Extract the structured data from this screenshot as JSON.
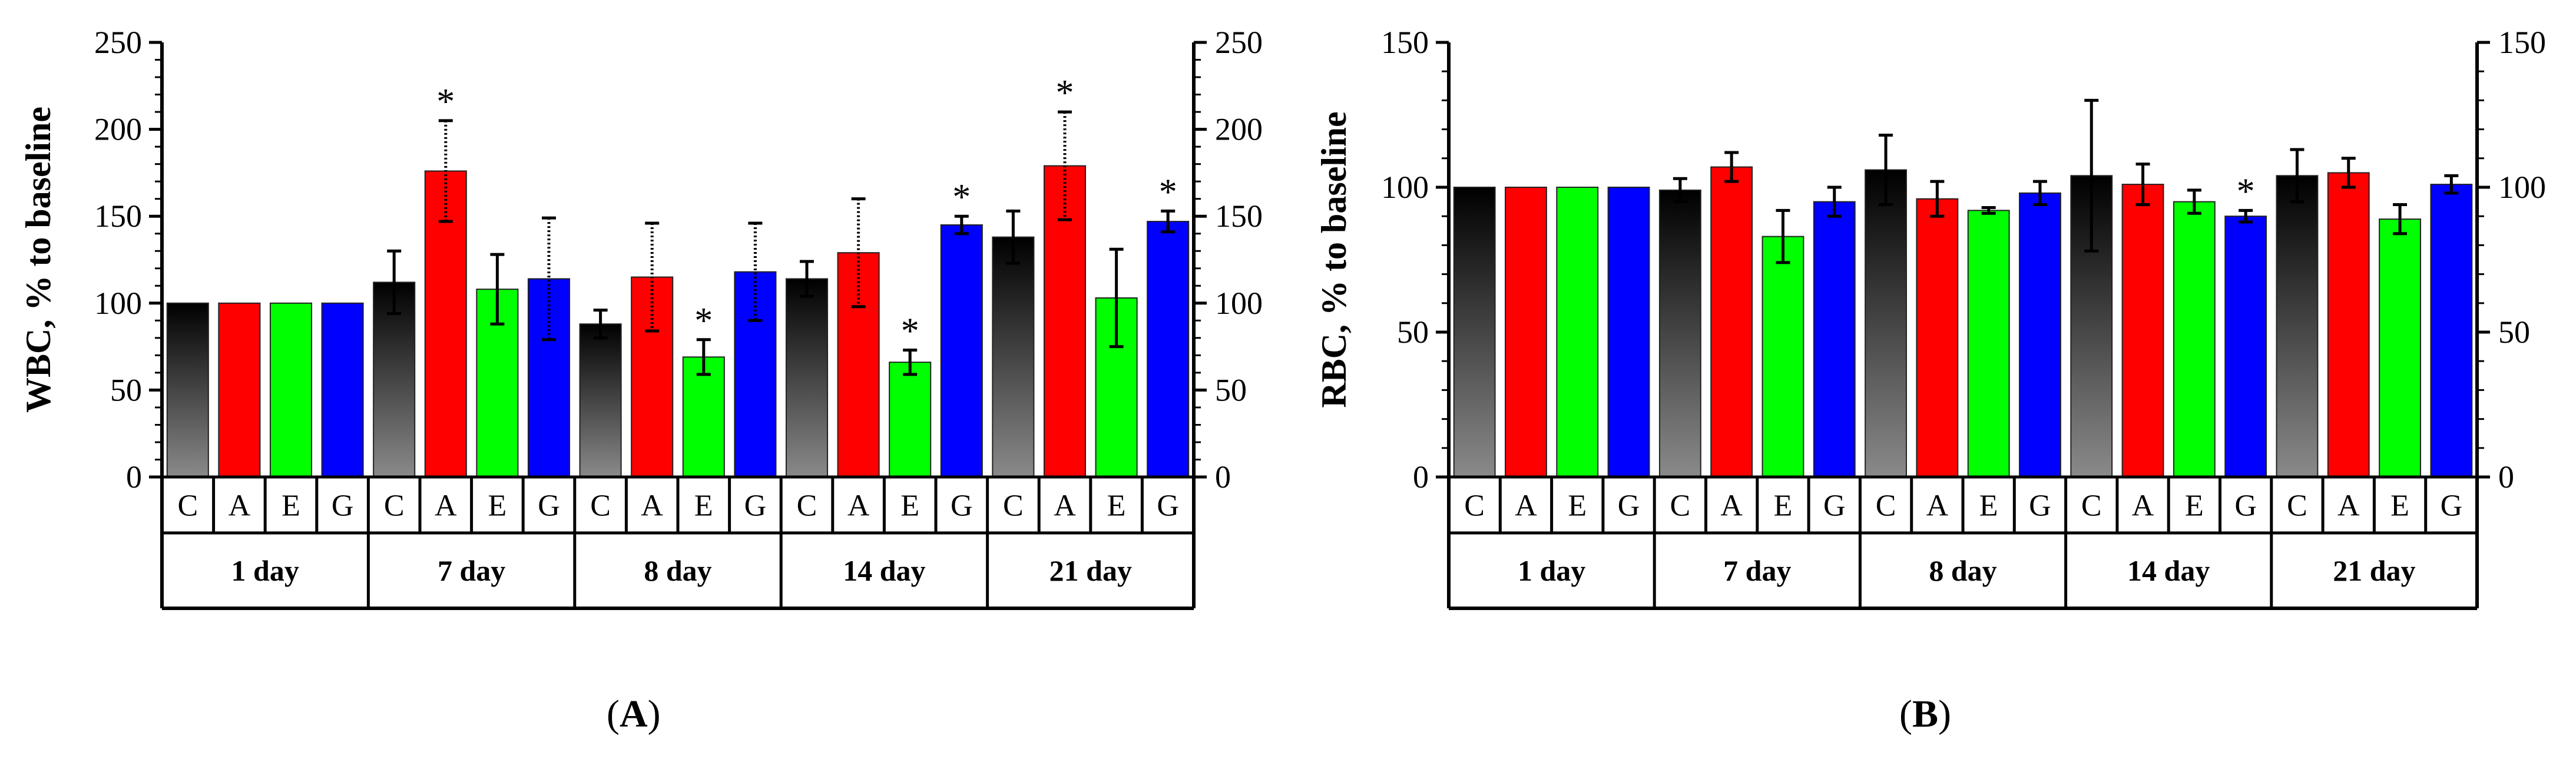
{
  "chart_data": [
    {
      "type": "bar",
      "panel_label": "A",
      "ylabel": "WBC, % to baseline",
      "ylim": [
        0,
        250
      ],
      "yticks": [
        "0",
        "50",
        "100",
        "150",
        "200",
        "250"
      ],
      "right_axis_mirrored": true,
      "groups": [
        "1 day",
        "7 day",
        "8 day",
        "14 day",
        "21 day"
      ],
      "series": [
        {
          "name": "C",
          "color": "#000000",
          "values": [
            100,
            112,
            88,
            114,
            138
          ],
          "errors": [
            0,
            18,
            8,
            10,
            15
          ],
          "starred": [
            false,
            false,
            false,
            false,
            false
          ]
        },
        {
          "name": "A",
          "color": "#ff0000",
          "values": [
            100,
            176,
            115,
            129,
            179
          ],
          "errors": [
            0,
            29,
            31,
            31,
            31
          ],
          "starred": [
            false,
            true,
            false,
            false,
            true
          ]
        },
        {
          "name": "E",
          "color": "#00ff00",
          "values": [
            100,
            108,
            69,
            66,
            103
          ],
          "errors": [
            0,
            20,
            10,
            7,
            28
          ],
          "starred": [
            false,
            false,
            true,
            true,
            false
          ]
        },
        {
          "name": "G",
          "color": "#0000ff",
          "values": [
            100,
            114,
            118,
            145,
            147
          ],
          "errors": [
            0,
            35,
            28,
            5,
            6
          ],
          "starred": [
            false,
            false,
            false,
            true,
            true
          ]
        }
      ],
      "annotation_symbol": "*"
    },
    {
      "type": "bar",
      "panel_label": "B",
      "ylabel": "RBC, % to baseline",
      "ylim": [
        0,
        150
      ],
      "yticks": [
        "0",
        "50",
        "100",
        "150"
      ],
      "right_axis_mirrored": true,
      "groups": [
        "1 day",
        "7 day",
        "8 day",
        "14 day",
        "21 day"
      ],
      "series": [
        {
          "name": "C",
          "color": "#000000",
          "values": [
            100,
            99,
            106,
            104,
            104
          ],
          "errors": [
            0,
            4,
            12,
            26,
            9
          ],
          "starred": [
            false,
            false,
            false,
            false,
            false
          ]
        },
        {
          "name": "A",
          "color": "#ff0000",
          "values": [
            100,
            107,
            96,
            101,
            105
          ],
          "errors": [
            0,
            5,
            6,
            7,
            5
          ],
          "starred": [
            false,
            false,
            false,
            false,
            false
          ]
        },
        {
          "name": "E",
          "color": "#00ff00",
          "values": [
            100,
            83,
            92,
            95,
            89
          ],
          "errors": [
            0,
            9,
            1,
            4,
            5
          ],
          "starred": [
            false,
            false,
            false,
            false,
            false
          ]
        },
        {
          "name": "G",
          "color": "#0000ff",
          "values": [
            100,
            95,
            98,
            90,
            101
          ],
          "errors": [
            0,
            5,
            4,
            2,
            3
          ],
          "starred": [
            false,
            false,
            false,
            true,
            false
          ]
        }
      ],
      "annotation_symbol": "*"
    }
  ],
  "captions": {
    "a": {
      "open": "(",
      "letter": "A",
      "close": ")"
    },
    "b": {
      "open": "(",
      "letter": "B",
      "close": ")"
    }
  }
}
